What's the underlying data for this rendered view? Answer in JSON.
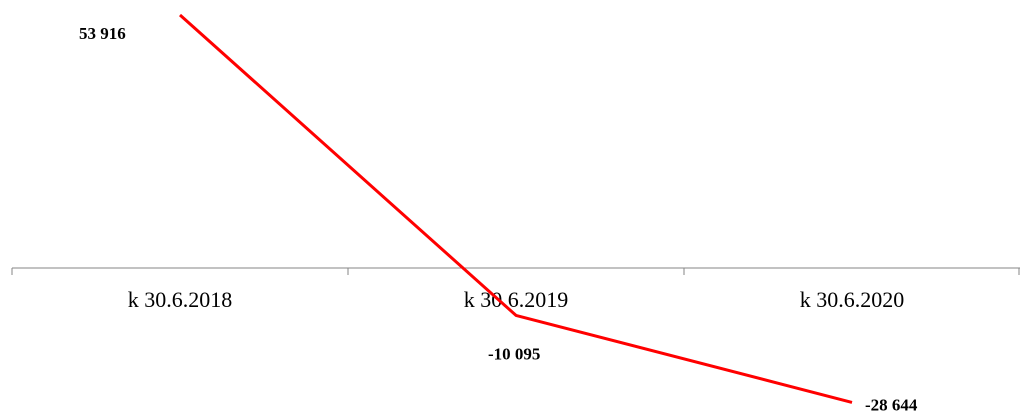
{
  "chart_data": {
    "type": "line",
    "categories": [
      "k 30.6.2018",
      "k 30.6.2019",
      "k 30.6.2020"
    ],
    "series": [
      {
        "values": [
          53916,
          -10095,
          -28644
        ],
        "color": "#ff0000",
        "data_labels": [
          "53 916",
          "-10 095",
          "-28 644"
        ]
      }
    ],
    "title": "",
    "xlabel": "",
    "ylabel": "",
    "ylim": [
      -30000,
      55000
    ],
    "grid": false,
    "legend": "none",
    "axis_color": "#868686"
  }
}
